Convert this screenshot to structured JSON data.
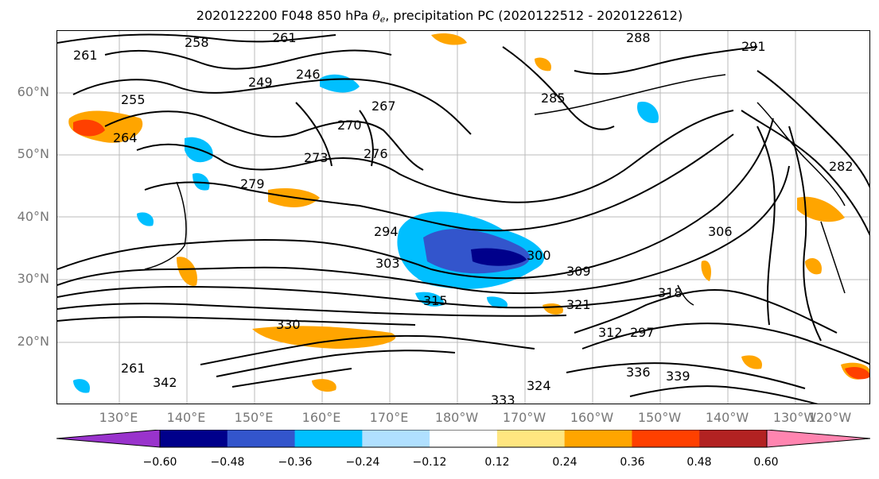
{
  "title": {
    "prefix": "2020122200 F048 850 hPa ",
    "theta": "θ",
    "theta_sub": "e",
    "suffix": ", precipitation PC (2020122512 - 2020122612)"
  },
  "map": {
    "lat_labels": [
      "60°N",
      "50°N",
      "40°N",
      "30°N",
      "20°N"
    ],
    "lon_labels": [
      "130°E",
      "140°E",
      "150°E",
      "160°E",
      "170°E",
      "180°W",
      "170°W",
      "160°W",
      "150°W",
      "140°W",
      "130°W",
      "120°W"
    ],
    "contour_labels": [
      "261",
      "258",
      "261",
      "255",
      "249",
      "264",
      "246",
      "270",
      "273",
      "276",
      "267",
      "279",
      "282",
      "285",
      "288",
      "291",
      "294",
      "303",
      "300",
      "306",
      "309",
      "312",
      "315",
      "318",
      "321",
      "324",
      "330",
      "333",
      "336",
      "339",
      "342",
      "261",
      "297"
    ],
    "grid": true
  },
  "colorbar": {
    "tick_labels": [
      "−0.60",
      "−0.48",
      "−0.36",
      "−0.24",
      "−0.12",
      "0.12",
      "0.24",
      "0.36",
      "0.48",
      "0.60"
    ],
    "colors": [
      "#9933cc",
      "#00008b",
      "#3355cc",
      "#00bfff",
      "#b0e0ff",
      "#ffffff",
      "#ffe680",
      "#ffa500",
      "#ff4000",
      "#b22222",
      "#ff85b0"
    ]
  }
}
